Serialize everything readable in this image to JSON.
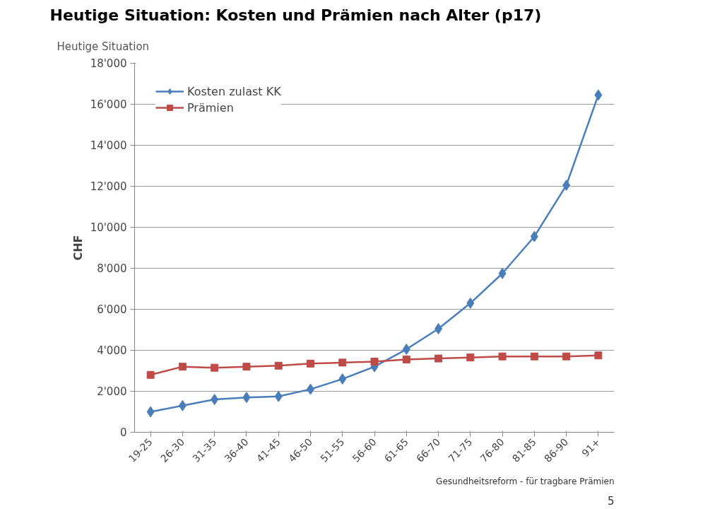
{
  "chart_data": {
    "type": "line",
    "title": "Heutige Situation: Kosten und Prämien nach Alter (p17)",
    "subtitle": "Heutige Situation",
    "ylabel": "CHF",
    "categories": [
      "19-25",
      "26-30",
      "31-35",
      "36-40",
      "41-45",
      "46-50",
      "51-55",
      "56-60",
      "61-65",
      "66-70",
      "71-75",
      "76-80",
      "81-85",
      "86-90",
      "91+"
    ],
    "series": [
      {
        "name": "Kosten zulast KK",
        "color": "#4a7ebb",
        "marker": "diamond",
        "values": [
          1000,
          1300,
          1600,
          1700,
          1750,
          2100,
          2600,
          3200,
          4050,
          5050,
          6300,
          7750,
          9550,
          12050,
          16450
        ]
      },
      {
        "name": "Prämien",
        "color": "#be4b48",
        "marker": "square",
        "values": [
          2800,
          3200,
          3150,
          3200,
          3250,
          3350,
          3400,
          3450,
          3550,
          3600,
          3650,
          3700,
          3700,
          3700,
          3750
        ]
      }
    ],
    "ylim": [
      0,
      18000
    ],
    "yticks": [
      0,
      {
        "value": 2000,
        "label": "2'000"
      },
      {
        "value": 4000,
        "label": "4'000"
      },
      {
        "value": 6000,
        "label": "6'000"
      },
      {
        "value": 8000,
        "label": "8'000"
      },
      {
        "value": 10000,
        "label": "10'000"
      },
      {
        "value": 12000,
        "label": "12'000"
      },
      {
        "value": 14000,
        "label": "14'000"
      },
      {
        "value": 16000,
        "label": "16'000"
      },
      {
        "value": 18000,
        "label": "18'000"
      }
    ],
    "grid": "y",
    "legend": "top left",
    "line_style": "solid",
    "annotations": [
      "Gesundheitsreform - für tragbare Prämien",
      "5"
    ]
  }
}
